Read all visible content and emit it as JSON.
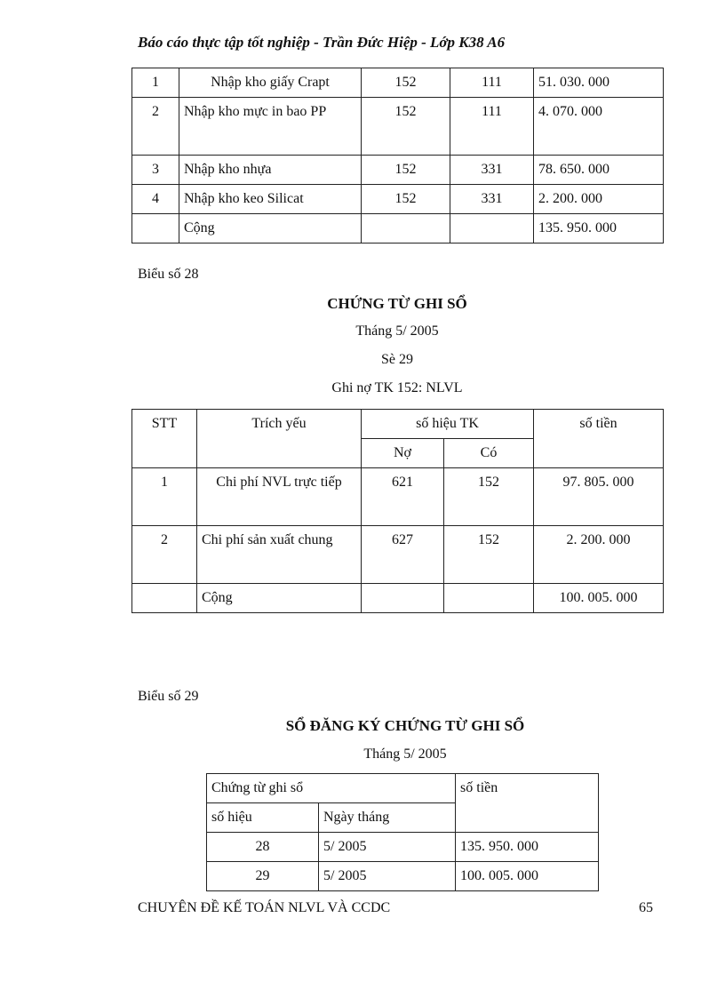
{
  "header": "Báo cáo thực tập tốt nghiệp - Trần Đức Hiệp - Lớp K38 A6",
  "table1": {
    "rows": [
      {
        "stt": "1",
        "desc": "Nhập kho giấy Crapt",
        "no": "152",
        "co": "111",
        "amount": "51. 030. 000"
      },
      {
        "stt": "2",
        "desc": "Nhập kho mực in bao PP",
        "no": "152",
        "co": "111",
        "amount": "4. 070. 000"
      },
      {
        "stt": "3",
        "desc": "Nhập kho nhựa",
        "no": "152",
        "co": "331",
        "amount": "78. 650. 000"
      },
      {
        "stt": "4",
        "desc": "Nhập kho keo Silicat",
        "no": "152",
        "co": "331",
        "amount": "2. 200. 000"
      },
      {
        "stt": "",
        "desc": "Cộng",
        "no": "",
        "co": "",
        "amount": "135. 950. 000"
      }
    ]
  },
  "section28": {
    "label": "Biểu số 28",
    "title": "CHỨNG TỪ GHI SỔ",
    "month": "Tháng 5/ 2005",
    "number": "Sè 29",
    "subtitle": "Ghi nợ TK 152: NLVL",
    "headers": {
      "stt": "STT",
      "desc": "Trích yếu",
      "account": "số hiệu TK",
      "no": "Nợ",
      "co": "Có",
      "amount": "số tiền"
    },
    "rows": [
      {
        "stt": "1",
        "desc": "Chi phí NVL trực tiếp",
        "no": "621",
        "co": "152",
        "amount": "97. 805. 000"
      },
      {
        "stt": "2",
        "desc": "Chi phí sản xuất chung",
        "no": "627",
        "co": "152",
        "amount": "2. 200. 000"
      },
      {
        "stt": "",
        "desc": "Cộng",
        "no": "",
        "co": "",
        "amount": "100. 005. 000"
      }
    ]
  },
  "section29": {
    "label": "Biểu số 29",
    "title": "SỔ ĐĂNG KÝ CHỨNG TỪ GHI SỔ",
    "month": "Tháng 5/ 2005",
    "headers": {
      "voucher": "Chứng từ ghi sổ",
      "number": "số hiệu",
      "date": "Ngày tháng",
      "amount": "số tiền"
    },
    "rows": [
      {
        "number": "28",
        "date": "5/ 2005",
        "amount": "135. 950. 000"
      },
      {
        "number": "29",
        "date": "5/ 2005",
        "amount": "100. 005. 000"
      }
    ]
  },
  "footer": {
    "text": "CHUYÊN ĐỀ KẾ TOÁN NLVL VÀ CCDC",
    "page": "65"
  }
}
